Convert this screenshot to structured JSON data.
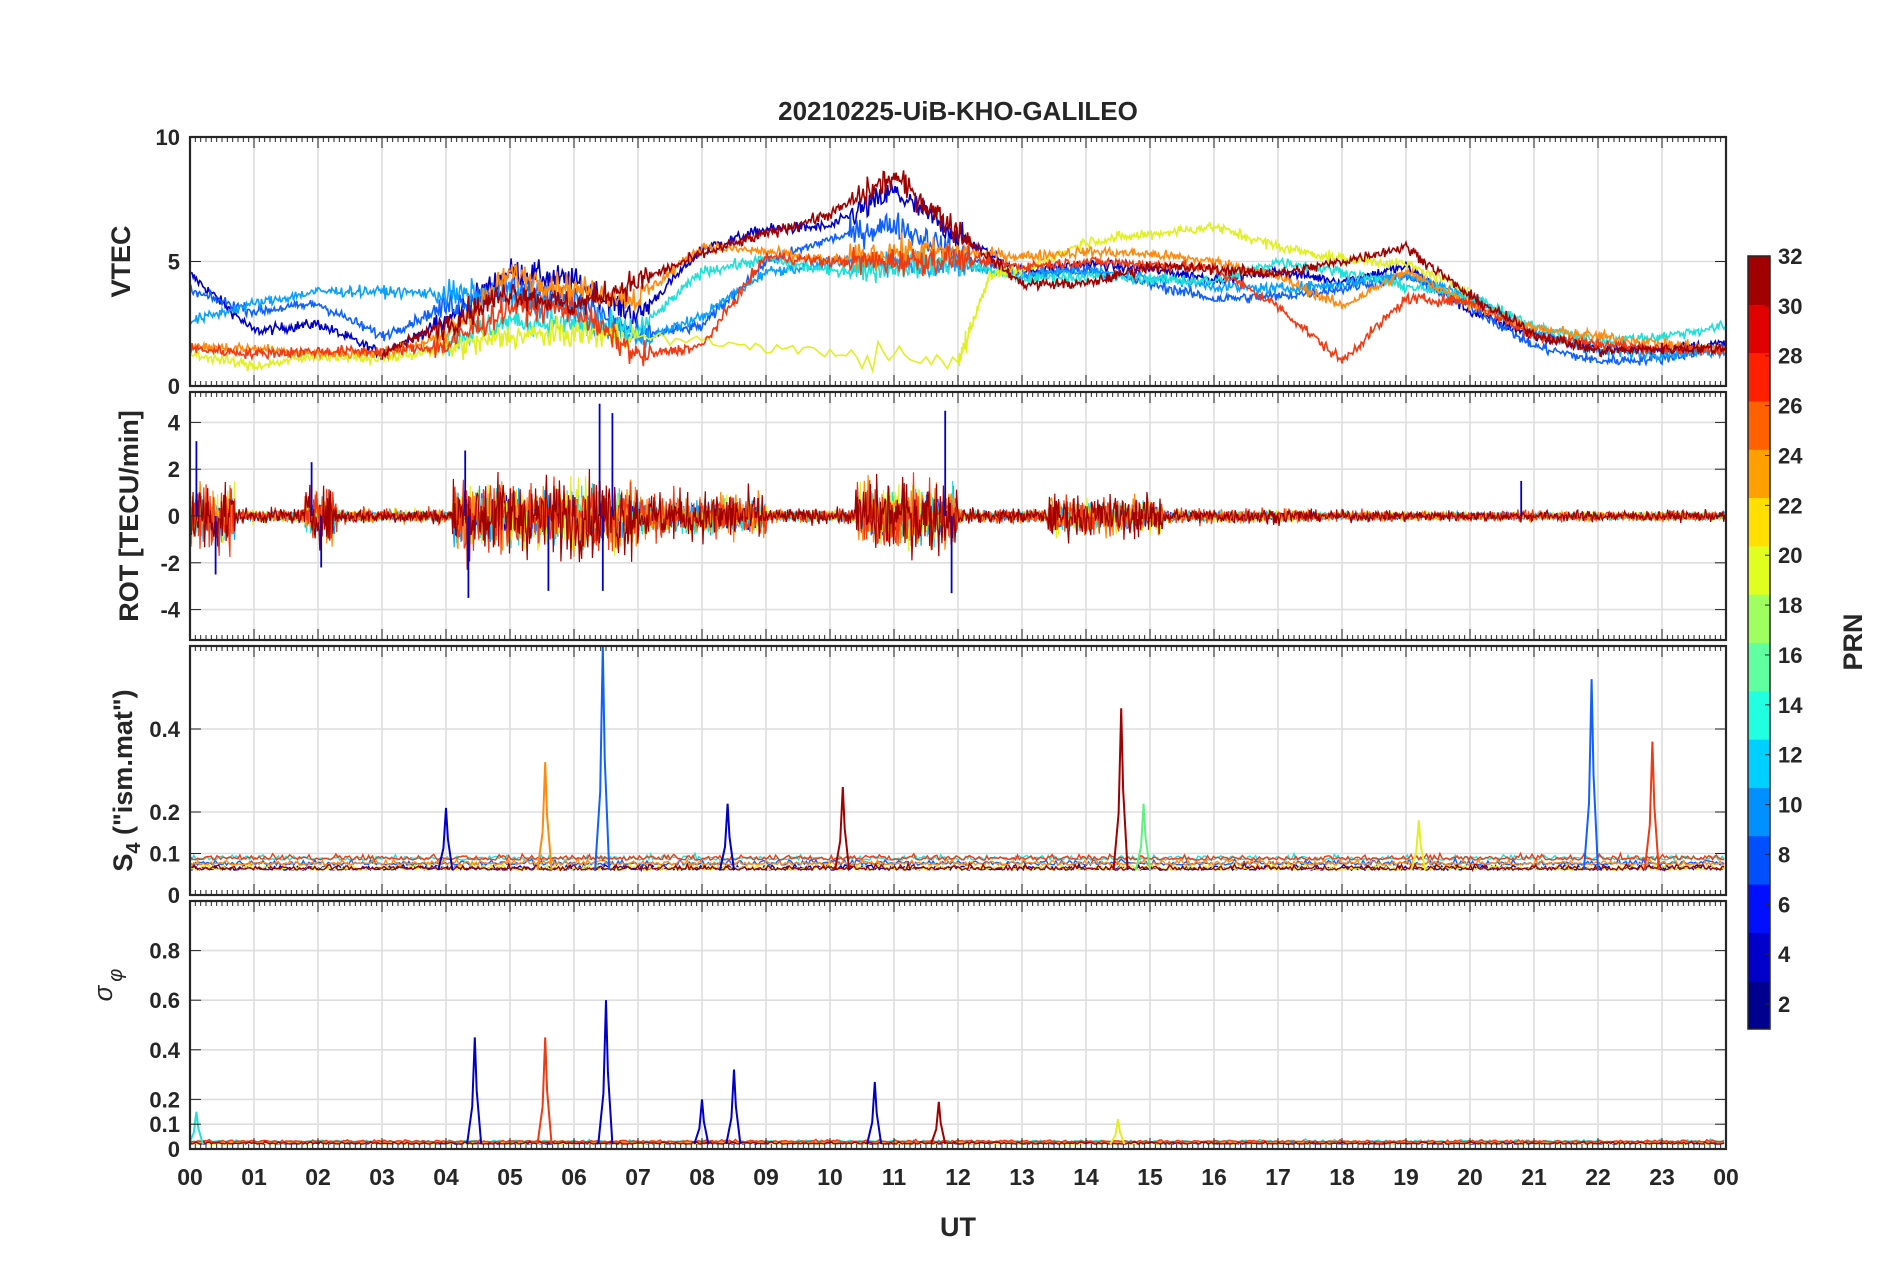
{
  "chart_data": {
    "type": "line",
    "title": "20210225-UiB-KHO-GALILEO",
    "xlabel": "UT",
    "x_ticks": [
      "00",
      "01",
      "02",
      "03",
      "04",
      "05",
      "06",
      "07",
      "08",
      "09",
      "10",
      "11",
      "12",
      "13",
      "14",
      "15",
      "16",
      "17",
      "18",
      "19",
      "20",
      "21",
      "22",
      "23",
      "00"
    ],
    "x_range_hours": [
      0,
      24
    ],
    "grid": true,
    "colorbar": {
      "label": "PRN",
      "range": [
        1,
        32
      ],
      "ticks": [
        "2",
        "4",
        "6",
        "8",
        "10",
        "12",
        "14",
        "16",
        "18",
        "20",
        "22",
        "24",
        "26",
        "28",
        "30",
        "32"
      ],
      "colormap": "jet",
      "placement": "right"
    },
    "panels": [
      {
        "ylabel": "VTEC",
        "ylim": [
          0,
          10
        ],
        "yticks": [
          "0",
          "5",
          "10"
        ],
        "series": [
          {
            "prn": 3,
            "color": "#0000c8",
            "points": [
              [
                0,
                4.5
              ],
              [
                1,
                2.2
              ],
              [
                2,
                2.5
              ],
              [
                3,
                1.3
              ],
              [
                4,
                2.6
              ],
              [
                5,
                4.6
              ],
              [
                6,
                4.2
              ],
              [
                7,
                2.8
              ],
              [
                8,
                5.5
              ],
              [
                9,
                6.3
              ],
              [
                10,
                6.4
              ],
              [
                11,
                7.8
              ],
              [
                12,
                6.0
              ],
              [
                13,
                4.6
              ],
              [
                14,
                4.9
              ],
              [
                15,
                4.7
              ],
              [
                16,
                4.3
              ],
              [
                17,
                4.6
              ],
              [
                18,
                4.2
              ],
              [
                19,
                4.8
              ],
              [
                20,
                3.0
              ],
              [
                21,
                2.0
              ],
              [
                22,
                1.5
              ],
              [
                23,
                1.5
              ],
              [
                24,
                1.7
              ]
            ]
          },
          {
            "prn": 7,
            "color": "#1060ff",
            "points": [
              [
                0,
                3.8
              ],
              [
                1,
                3.0
              ],
              [
                2,
                3.3
              ],
              [
                3,
                2.0
              ],
              [
                4,
                3.2
              ],
              [
                5,
                4.0
              ],
              [
                6,
                3.5
              ],
              [
                7,
                2.0
              ],
              [
                8,
                2.4
              ],
              [
                9,
                5.0
              ],
              [
                10,
                5.9
              ],
              [
                11,
                6.5
              ],
              [
                12,
                5.3
              ],
              [
                13,
                4.4
              ],
              [
                14,
                4.7
              ],
              [
                15,
                4.1
              ],
              [
                16,
                3.5
              ],
              [
                17,
                3.6
              ],
              [
                18,
                3.9
              ],
              [
                19,
                4.4
              ],
              [
                20,
                3.2
              ],
              [
                21,
                1.6
              ],
              [
                22,
                1.0
              ],
              [
                23,
                1.1
              ],
              [
                24,
                1.6
              ]
            ]
          },
          {
            "prn": 10,
            "color": "#0aa0ff",
            "points": [
              [
                0,
                2.6
              ],
              [
                1,
                3.3
              ],
              [
                2,
                3.8
              ],
              [
                3,
                3.8
              ],
              [
                4,
                3.7
              ],
              [
                5,
                3.6
              ],
              [
                6,
                3.0
              ],
              [
                7,
                1.8
              ],
              [
                8,
                2.8
              ],
              [
                9,
                4.6
              ],
              [
                10,
                4.9
              ],
              [
                11,
                5.1
              ],
              [
                12,
                4.8
              ],
              [
                13,
                4.5
              ],
              [
                14,
                4.6
              ],
              [
                15,
                4.4
              ],
              [
                16,
                4.0
              ],
              [
                17,
                3.9
              ],
              [
                18,
                4.1
              ],
              [
                19,
                4.5
              ],
              [
                20,
                3.6
              ],
              [
                21,
                2.2
              ],
              [
                22,
                1.4
              ],
              [
                23,
                1.3
              ],
              [
                24,
                1.4
              ]
            ]
          },
          {
            "prn": 13,
            "color": "#20e0d8",
            "points": [
              [
                4,
                1.8
              ],
              [
                5,
                2.6
              ],
              [
                6,
                2.5
              ],
              [
                7,
                2.2
              ],
              [
                8,
                4.6
              ],
              [
                9,
                5.1
              ],
              [
                10,
                4.6
              ],
              [
                11,
                4.8
              ],
              [
                12,
                5.0
              ],
              [
                13,
                4.3
              ],
              [
                14,
                4.4
              ],
              [
                15,
                4.3
              ],
              [
                16,
                4.2
              ],
              [
                17,
                5.0
              ],
              [
                18,
                4.6
              ],
              [
                19,
                4.0
              ],
              [
                20,
                3.6
              ],
              [
                21,
                2.4
              ],
              [
                22,
                1.8
              ],
              [
                23,
                2.0
              ],
              [
                24,
                2.4
              ]
            ]
          },
          {
            "prn": 19,
            "color": "#e0f020",
            "points": [
              [
                0,
                1.3
              ],
              [
                1,
                0.8
              ],
              [
                2,
                1.2
              ],
              [
                3,
                1.1
              ],
              [
                4,
                1.5
              ],
              [
                5,
                2.0
              ],
              [
                6,
                2.1
              ],
              [
                7,
                2.0
              ],
              [
                12,
                0.9
              ],
              [
                12.5,
                4.5
              ],
              [
                13,
                4.6
              ],
              [
                14,
                5.8
              ],
              [
                15,
                6.1
              ],
              [
                16,
                6.4
              ],
              [
                17,
                5.6
              ],
              [
                18,
                5.1
              ],
              [
                19,
                4.9
              ],
              [
                20,
                3.8
              ]
            ]
          },
          {
            "prn": 23,
            "color": "#ff8a10",
            "points": [
              [
                0,
                1.6
              ],
              [
                1,
                1.5
              ],
              [
                2,
                1.3
              ],
              [
                3,
                1.3
              ],
              [
                4,
                2.0
              ],
              [
                5,
                4.5
              ],
              [
                6,
                3.9
              ],
              [
                7,
                3.5
              ],
              [
                8,
                5.6
              ],
              [
                9,
                5.4
              ],
              [
                10,
                5.0
              ],
              [
                11,
                5.4
              ],
              [
                12,
                5.4
              ],
              [
                13,
                5.2
              ],
              [
                14,
                5.4
              ],
              [
                15,
                5.3
              ],
              [
                16,
                5.0
              ],
              [
                17,
                4.4
              ],
              [
                18,
                3.2
              ],
              [
                19,
                4.6
              ],
              [
                20,
                3.3
              ],
              [
                21,
                2.3
              ],
              [
                22,
                2.0
              ],
              [
                23,
                1.7
              ],
              [
                24,
                1.5
              ]
            ]
          },
          {
            "prn": 27,
            "color": "#f03a14",
            "points": [
              [
                0,
                1.5
              ],
              [
                1,
                1.3
              ],
              [
                2,
                1.4
              ],
              [
                3,
                1.4
              ],
              [
                4,
                1.6
              ],
              [
                5,
                3.2
              ],
              [
                6,
                3.1
              ],
              [
                7,
                1.2
              ],
              [
                8,
                1.6
              ],
              [
                9,
                5.2
              ],
              [
                10,
                5.0
              ],
              [
                11,
                5.0
              ],
              [
                12,
                5.1
              ],
              [
                13,
                4.8
              ],
              [
                14,
                5.0
              ],
              [
                15,
                4.9
              ],
              [
                16,
                4.7
              ],
              [
                17,
                3.2
              ],
              [
                18,
                1.0
              ],
              [
                19,
                3.5
              ],
              [
                20,
                3.4
              ],
              [
                21,
                2.0
              ],
              [
                22,
                1.7
              ],
              [
                23,
                1.5
              ],
              [
                24,
                1.4
              ]
            ]
          },
          {
            "prn": 31,
            "color": "#a00000",
            "points": [
              [
                3,
                1.3
              ],
              [
                4,
                2.5
              ],
              [
                5,
                3.8
              ],
              [
                6,
                3.2
              ],
              [
                7,
                4.2
              ],
              [
                8,
                5.3
              ],
              [
                9,
                6.1
              ],
              [
                10,
                6.9
              ],
              [
                11,
                8.4
              ],
              [
                12,
                6.2
              ],
              [
                13,
                4.1
              ],
              [
                14,
                4.1
              ],
              [
                15,
                4.8
              ],
              [
                16,
                4.7
              ],
              [
                17,
                4.5
              ],
              [
                18,
                5.0
              ],
              [
                19,
                5.6
              ],
              [
                20,
                3.6
              ],
              [
                21,
                2.1
              ],
              [
                22,
                1.4
              ],
              [
                23,
                1.5
              ],
              [
                24,
                1.5
              ]
            ]
          }
        ]
      },
      {
        "ylabel": "ROT [TECU/min]",
        "ylim": [
          -5.3,
          5.3
        ],
        "yticks": [
          "-4",
          "-2",
          "0",
          "2",
          "4"
        ],
        "note": "dense noisy series centred on 0, bursts near 00, 02, 04-07, 10.5-12 and 14-15 UT",
        "extremes": [
          [
            0.1,
            3.2
          ],
          [
            0.4,
            -2.5
          ],
          [
            1.9,
            2.3
          ],
          [
            2.05,
            -2.2
          ],
          [
            4.3,
            2.8
          ],
          [
            4.35,
            -3.5
          ],
          [
            5.6,
            -3.2
          ],
          [
            6.4,
            4.8
          ],
          [
            6.45,
            -3.2
          ],
          [
            6.6,
            4.4
          ],
          [
            11.8,
            4.5
          ],
          [
            11.9,
            -3.3
          ],
          [
            20.8,
            1.5
          ]
        ]
      },
      {
        "ylabel": "S4 (\"ism.mat\")",
        "ylabel_main": "S",
        "ylabel_sub": "4",
        "ylabel_rest": " (\"ism.mat\")",
        "ylim": [
          0,
          0.6
        ],
        "yticks": [
          "0",
          "0.1",
          "0.2",
          "0.4"
        ],
        "baseline": 0.06,
        "spikes": [
          {
            "x": 4.0,
            "peak": 0.21,
            "color": "#0000c8"
          },
          {
            "x": 5.55,
            "peak": 0.32,
            "color": "#ff8a10"
          },
          {
            "x": 6.45,
            "peak": 0.6,
            "color": "#1060ff"
          },
          {
            "x": 8.4,
            "peak": 0.22,
            "color": "#0000c8"
          },
          {
            "x": 10.2,
            "peak": 0.26,
            "color": "#a00000"
          },
          {
            "x": 14.55,
            "peak": 0.45,
            "color": "#a00000"
          },
          {
            "x": 14.9,
            "peak": 0.22,
            "color": "#60f080"
          },
          {
            "x": 19.2,
            "peak": 0.18,
            "color": "#e0f020"
          },
          {
            "x": 21.9,
            "peak": 0.52,
            "color": "#1060ff"
          },
          {
            "x": 22.85,
            "peak": 0.37,
            "color": "#f03a14"
          }
        ]
      },
      {
        "ylabel": "σφ",
        "ylabel_main": "σ",
        "ylabel_sub": "φ",
        "ylim": [
          0,
          1
        ],
        "yticks": [
          "0",
          "0.1",
          "0.2",
          "0.4",
          "0.6",
          "0.8"
        ],
        "baseline": 0.02,
        "spikes": [
          {
            "x": 0.1,
            "peak": 0.15,
            "color": "#20e0d8"
          },
          {
            "x": 4.45,
            "peak": 0.45,
            "color": "#0000c8"
          },
          {
            "x": 5.55,
            "peak": 0.45,
            "color": "#f03a14"
          },
          {
            "x": 6.5,
            "peak": 0.6,
            "color": "#0000c8"
          },
          {
            "x": 8.0,
            "peak": 0.2,
            "color": "#0000c8"
          },
          {
            "x": 8.5,
            "peak": 0.32,
            "color": "#0000c8"
          },
          {
            "x": 10.7,
            "peak": 0.27,
            "color": "#0000c8"
          },
          {
            "x": 11.7,
            "peak": 0.19,
            "color": "#a00000"
          },
          {
            "x": 14.5,
            "peak": 0.12,
            "color": "#e0f020"
          }
        ]
      }
    ]
  }
}
